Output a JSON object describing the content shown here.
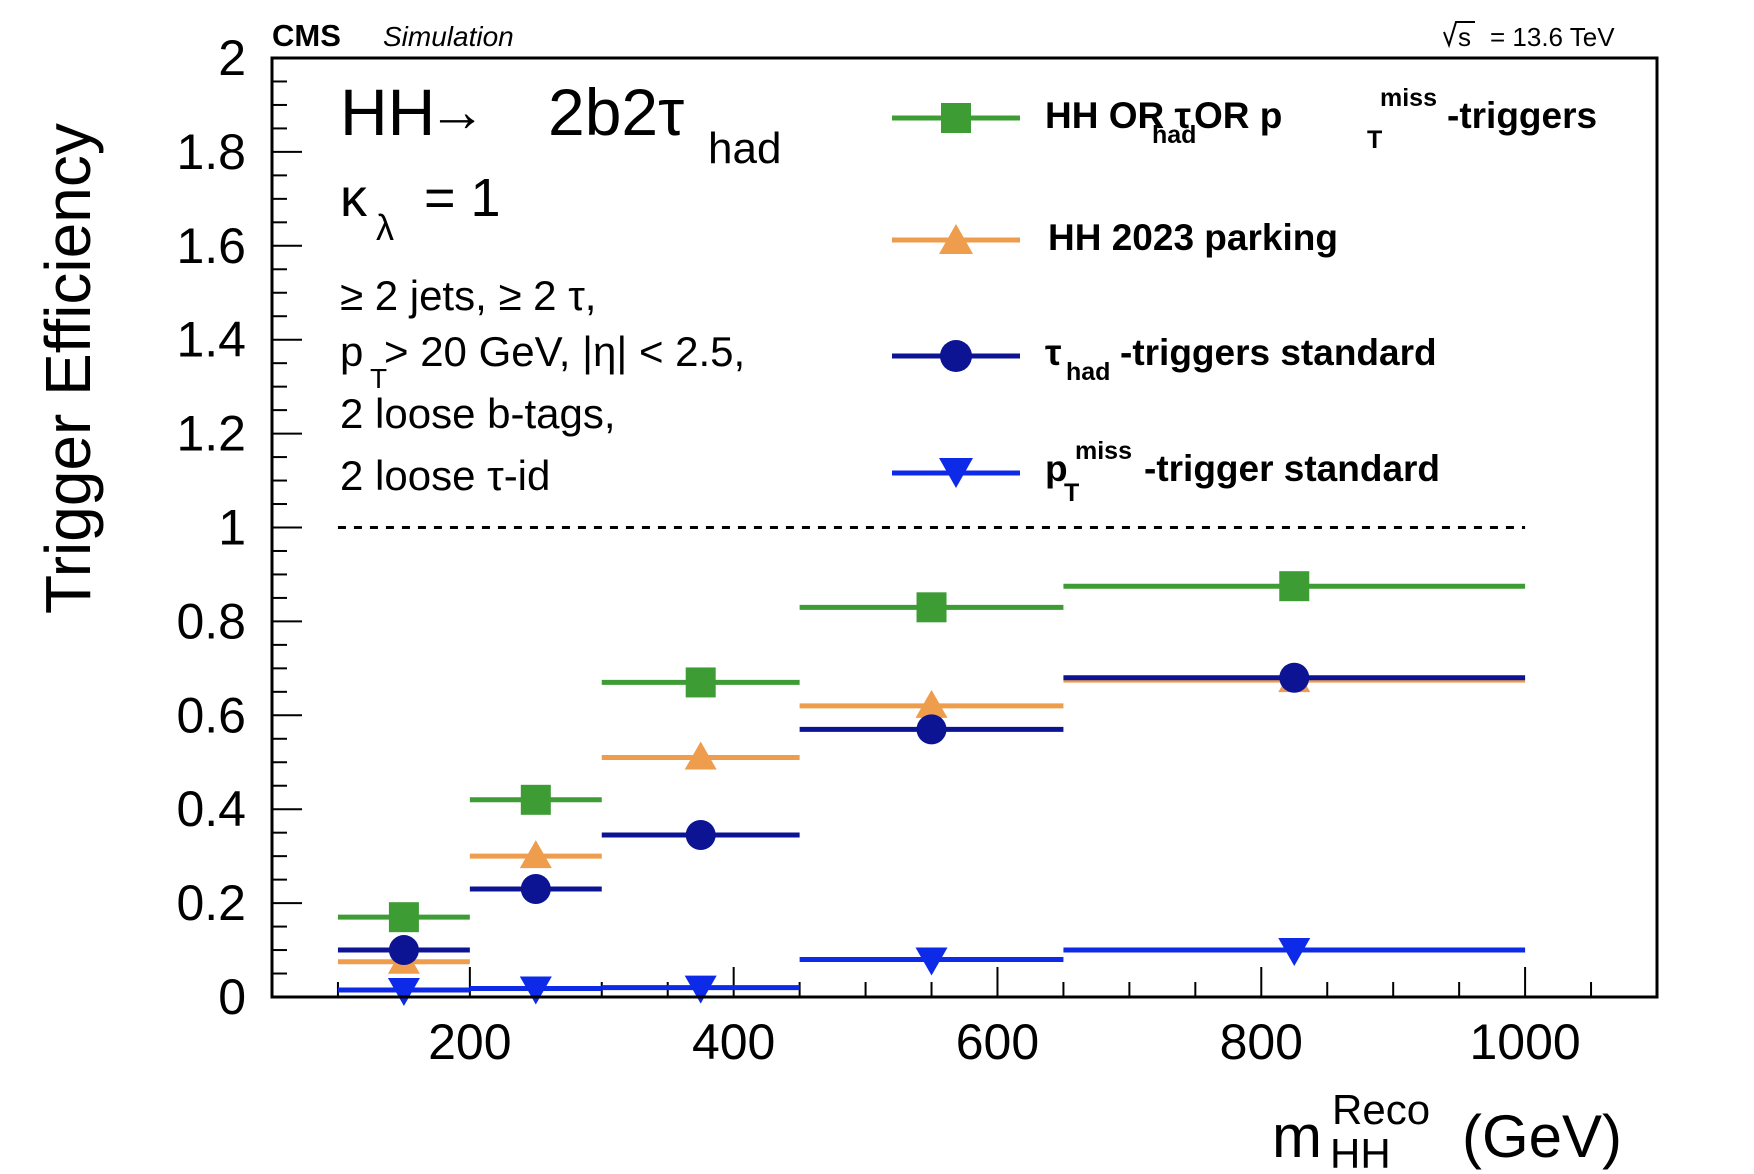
{
  "header": {
    "experiment": "CMS",
    "label": "Simulation",
    "energy_sqrt": "s",
    "energy_value": "= 13.6 TeV"
  },
  "process": {
    "part1": "HH",
    "arrow": "→",
    "part2": "2b2τ",
    "part2_sub": "had"
  },
  "coupling": {
    "symbol": "κ",
    "sub": "λ",
    "value": "= 1"
  },
  "selection": {
    "line1": "≥ 2 jets, ≥ 2 τ,",
    "line2_p": "p",
    "line2_sub": "T",
    "line2_rest": " > 20 GeV, |η| < 2.5,",
    "line3": "2 loose b-tags,",
    "line4": "2 loose τ-id"
  },
  "legend": {
    "entry1": {
      "a": "HH OR τ",
      "a_sub": "had",
      "b": " OR p",
      "b_sup": "miss",
      "b_sub": "T",
      "c": "-triggers"
    },
    "entry2": {
      "text": "HH 2023 parking"
    },
    "entry3": {
      "sym": "τ",
      "sym_sub": "had",
      "rest": "-triggers standard"
    },
    "entry4": {
      "p": "p",
      "p_sup": "miss",
      "p_sub": "T",
      "rest": "-trigger standard"
    }
  },
  "chart_data": {
    "type": "scatter",
    "title": "",
    "xlabel_main": "m",
    "xlabel_sup": "Reco",
    "xlabel_sub": "HH",
    "xlabel_unit": "(GeV)",
    "ylabel": "Trigger Efficiency",
    "xlim": [
      50,
      1100
    ],
    "ylim": [
      0,
      2
    ],
    "x_ticks": [
      200,
      400,
      600,
      800,
      1000
    ],
    "y_ticks": [
      0,
      0.2,
      0.4,
      0.6,
      0.8,
      1,
      1.2,
      1.4,
      1.6,
      1.8,
      2
    ],
    "y_tick_labels": [
      "0",
      "0.2",
      "0.4",
      "0.6",
      "0.8",
      "1",
      "1.2",
      "1.4",
      "1.6",
      "1.8",
      "2"
    ],
    "x_tick_labels": [
      "200",
      "400",
      "600",
      "800",
      "1000"
    ],
    "reference_line": {
      "y": 1.0,
      "x_range": [
        100,
        1000
      ],
      "style": "dashed"
    },
    "bins": [
      [
        100,
        200
      ],
      [
        200,
        300
      ],
      [
        300,
        450
      ],
      [
        450,
        650
      ],
      [
        650,
        1000
      ]
    ],
    "bin_centers": [
      150,
      250,
      375,
      550,
      825
    ],
    "series": [
      {
        "name": "HH OR τhad OR pTmiss-triggers",
        "color": "#3e9c35",
        "marker": "square",
        "values": [
          0.17,
          0.42,
          0.67,
          0.83,
          0.875
        ]
      },
      {
        "name": "HH 2023 parking",
        "color": "#ee9d4d",
        "marker": "triangle-up",
        "values": [
          0.075,
          0.3,
          0.51,
          0.62,
          0.675
        ]
      },
      {
        "name": "τhad-triggers standard",
        "color": "#0c1494",
        "marker": "circle",
        "values": [
          0.1,
          0.23,
          0.345,
          0.57,
          0.68
        ]
      },
      {
        "name": "pTmiss-trigger standard",
        "color": "#0c2ae8",
        "marker": "triangle-down",
        "values": [
          0.015,
          0.018,
          0.02,
          0.08,
          0.1
        ]
      }
    ]
  }
}
